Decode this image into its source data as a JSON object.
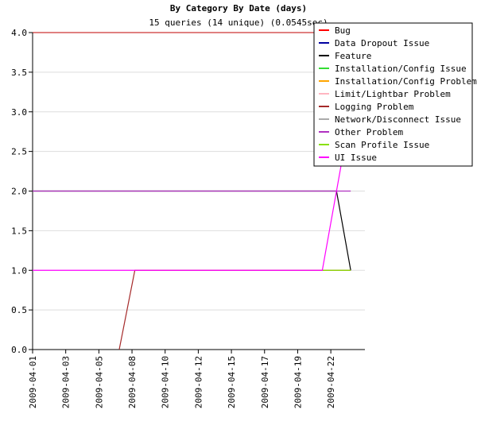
{
  "chart_data": {
    "type": "line",
    "title": "By Category By Date (days)",
    "subtitle": "15 queries (14 unique) (0.0545sec)",
    "xlim": [
      1,
      24.4
    ],
    "xticks": [
      {
        "value": 1,
        "label": "2009-04-01"
      },
      {
        "value": 3.333,
        "label": "2009-04-03"
      },
      {
        "value": 5.667,
        "label": "2009-04-05"
      },
      {
        "value": 8,
        "label": "2009-04-08"
      },
      {
        "value": 10.333,
        "label": "2009-04-10"
      },
      {
        "value": 12.667,
        "label": "2009-04-12"
      },
      {
        "value": 15,
        "label": "2009-04-15"
      },
      {
        "value": 17.333,
        "label": "2009-04-17"
      },
      {
        "value": 19.667,
        "label": "2009-04-19"
      },
      {
        "value": 22,
        "label": "2009-04-22"
      }
    ],
    "ylim": [
      0,
      4
    ],
    "yticks": [
      {
        "value": 0,
        "label": "0.0"
      },
      0.5,
      {
        "value": 1,
        "label": "1.0"
      },
      1.5,
      {
        "value": 2,
        "label": "2.0"
      },
      2.5,
      {
        "value": 3,
        "label": "3.0"
      },
      3.5,
      {
        "value": 4,
        "label": "4.0"
      }
    ],
    "grid": true,
    "legend": "top-right",
    "series": [
      {
        "name": "Bug",
        "color": "#ff0000",
        "x": [],
        "values": []
      },
      {
        "name": "Data Dropout Issue",
        "color": "#0000a0",
        "x": [],
        "values": []
      },
      {
        "name": "Feature",
        "color": "#000000",
        "x": [
          1,
          22.4,
          23.4
        ],
        "values": [
          2,
          2,
          1
        ]
      },
      {
        "name": "Installation/Config Issue",
        "color": "#33dd33",
        "x": [],
        "values": []
      },
      {
        "name": "Installation/Config Problem",
        "color": "#ffa500",
        "x": [],
        "values": []
      },
      {
        "name": "Limit/Lightbar Problem",
        "color": "#ffb6c1",
        "x": [],
        "values": []
      },
      {
        "name": "Logging Problem",
        "color": "#a52a2a",
        "x": [
          7.1,
          8.2,
          23.4
        ],
        "values": [
          0,
          1,
          1
        ]
      },
      {
        "name": "Network/Disconnect Issue",
        "color": "#aaaaaa",
        "x": [],
        "values": []
      },
      {
        "name": "Other Problem",
        "color": "#b030c0",
        "x": [
          1,
          23.4
        ],
        "values": [
          2,
          2
        ]
      },
      {
        "name": "Scan Profile Issue",
        "color": "#88e000",
        "x": [
          21.4,
          23.4
        ],
        "values": [
          1,
          1
        ]
      },
      {
        "name": "UI Issue",
        "color": "#ff00ff",
        "x": [
          1,
          21.4,
          23.4
        ],
        "values": [
          1,
          1,
          3
        ]
      }
    ]
  }
}
